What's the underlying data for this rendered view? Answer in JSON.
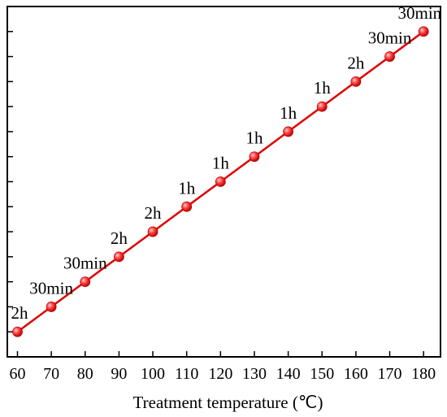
{
  "chart_data": {
    "type": "line",
    "title": "",
    "xlabel": "Treatment temperature (℃)",
    "ylabel": "",
    "x": [
      60,
      70,
      80,
      90,
      100,
      110,
      120,
      130,
      140,
      150,
      160,
      170,
      180
    ],
    "y": [
      1,
      2,
      3,
      4,
      5,
      6,
      7,
      8,
      9,
      10,
      11,
      12,
      13
    ],
    "point_labels": [
      "2h",
      "30min",
      "30min",
      "2h",
      "2h",
      "1h",
      "1h",
      "1h",
      "1h",
      "1h",
      "2h",
      "30min",
      "30min"
    ],
    "xlim": [
      57,
      185
    ],
    "ylim": [
      0,
      14
    ],
    "y_tick_labels_shown": false,
    "grid": false,
    "legend": "none",
    "line_color": "#e00000",
    "marker_color": "#ff3b3b"
  }
}
